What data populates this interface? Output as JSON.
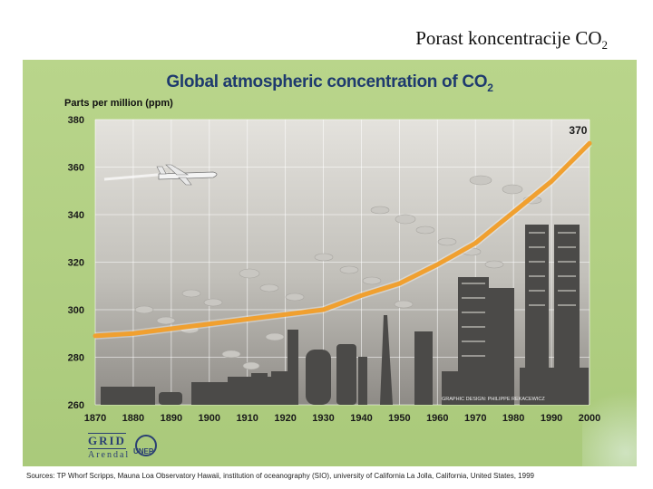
{
  "slide_title": "Porast koncentracije CO",
  "slide_title_sub": "2",
  "chart_data": {
    "type": "line",
    "title": "Global atmospheric concentration of CO",
    "title_sub": "2",
    "ylabel": "Parts per million (ppm)",
    "xlabel": "",
    "x_ticks": [
      "1870",
      "1880",
      "1890",
      "1900",
      "1910",
      "1920",
      "1930",
      "1940",
      "1950",
      "1960",
      "1970",
      "1980",
      "1990",
      "2000"
    ],
    "y_ticks": [
      "380",
      "360",
      "340",
      "320",
      "300",
      "280",
      "260"
    ],
    "ylim": [
      260,
      380
    ],
    "xlim": [
      1870,
      2000
    ],
    "grid": true,
    "series": [
      {
        "name": "",
        "color": "#f0a030",
        "x": [
          1870,
          1880,
          1890,
          1900,
          1910,
          1920,
          1930,
          1940,
          1950,
          1960,
          1970,
          1980,
          1990,
          1995,
          2000
        ],
        "y": [
          289,
          290,
          292,
          294,
          296,
          298,
          300,
          306,
          311,
          319,
          328,
          341,
          354,
          362,
          370
        ]
      }
    ],
    "annotations": [
      {
        "text": "370",
        "x": 1997,
        "y": 374
      }
    ],
    "credit": "GRAPHIC DESIGN: PHILIPPE REKACEWICZ"
  },
  "logo": {
    "grid": "GRID",
    "arendal": "Arendal",
    "unep": "UNEP"
  },
  "sources": "Sources: TP Whorf  Scripps, Mauna Loa Observatory Hawaii, institution of oceanography (SIO), university of California La Jolla, California, United States, 1999",
  "colors": {
    "poster_bg": "#b5d386",
    "plot_bg": "#d6d4cf",
    "smog": "#a6a39e",
    "line": "#f0a030",
    "title": "#1e3a6e"
  }
}
